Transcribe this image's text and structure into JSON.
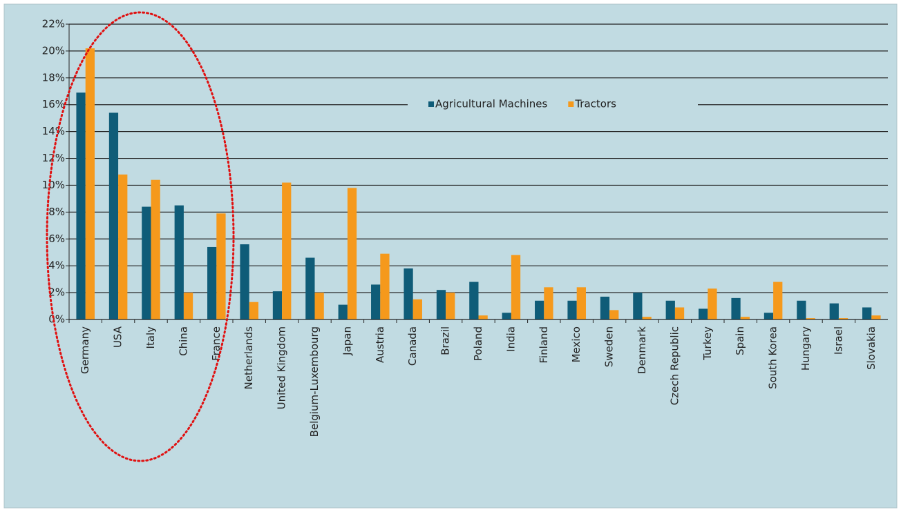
{
  "chart_data": {
    "type": "bar",
    "categories": [
      "Germany",
      "USA",
      "Italy",
      "China",
      "France",
      "Netherlands",
      "United Kingdom",
      "Belgium-Luxembourg",
      "Japan",
      "Austria",
      "Canada",
      "Brazil",
      "Poland",
      "India",
      "Finland",
      "Mexico",
      "Sweden",
      "Denmark",
      "Czech Republic",
      "Turkey",
      "Spain",
      "South Korea",
      "Hungary",
      "Israel",
      "Slovakia"
    ],
    "series": [
      {
        "name": "Agricultural Machines",
        "color": "#0f5c78",
        "values": [
          16.9,
          15.4,
          8.4,
          8.5,
          5.4,
          5.6,
          2.1,
          4.6,
          1.1,
          2.6,
          3.8,
          2.2,
          2.8,
          0.5,
          1.4,
          1.4,
          1.7,
          2.0,
          1.4,
          0.8,
          1.6,
          0.5,
          1.4,
          1.2,
          0.9
        ]
      },
      {
        "name": "Tractors",
        "color": "#f5991c",
        "values": [
          20.2,
          10.8,
          10.4,
          2.0,
          7.9,
          1.3,
          10.2,
          2.0,
          9.8,
          4.9,
          1.5,
          2.0,
          0.3,
          4.8,
          2.4,
          2.4,
          0.7,
          0.2,
          0.9,
          2.3,
          0.2,
          2.8,
          0.1,
          0.1,
          0.3
        ]
      }
    ],
    "ylim": [
      0,
      22
    ],
    "yticks": [
      {
        "value": 0,
        "label": "0%"
      },
      {
        "value": 2,
        "label": "2%"
      },
      {
        "value": 4,
        "label": "4%"
      },
      {
        "value": 6,
        "label": "6%"
      },
      {
        "value": 8,
        "label": "8%"
      },
      {
        "value": 10,
        "label": "10%"
      },
      {
        "value": 12,
        "label": "12%"
      },
      {
        "value": 14,
        "label": "14%"
      },
      {
        "value": 16,
        "label": "16%"
      },
      {
        "value": 18,
        "label": "18%"
      },
      {
        "value": 20,
        "label": "20%"
      },
      {
        "value": 22,
        "label": "22%"
      }
    ],
    "grid": true
  }
}
